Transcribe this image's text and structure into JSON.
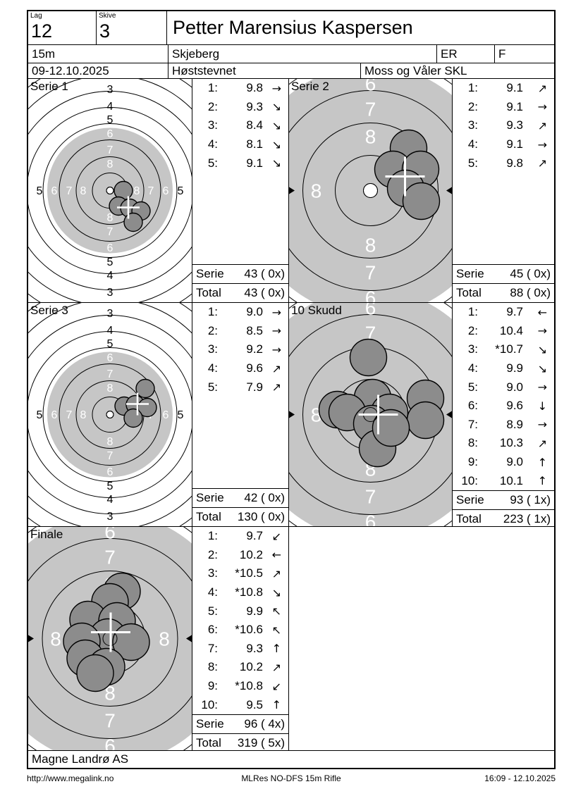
{
  "colors": {
    "target_gray": "#c6c6c6",
    "hole_fill": "#8c8c8c",
    "hole_stroke": "#000000",
    "marker_white": "#ffffff",
    "line_black": "#000000"
  },
  "header": {
    "lag_label": "Lag",
    "lag_value": "12",
    "skive_label": "Skive",
    "skive_value": "3",
    "shooter_name": "Petter Marensius Kaspersen",
    "distance": "15m",
    "club": "Skjeberg",
    "class_code": "ER",
    "category": "F",
    "dates": "09-12.10.2025",
    "event": "Høststevnet",
    "organizer": "Moss og Våler SKL"
  },
  "publisher": "Magne Landrø AS",
  "footer": {
    "url": "http://www.megalink.no",
    "program": "MLRes NO-DFS 15m Rifle",
    "datetime": "16:09 - 12.10.2025"
  },
  "target_config": {
    "s1": {
      "rings": [
        25,
        48,
        72,
        95,
        118,
        141,
        164,
        187,
        210
      ],
      "gray": 89,
      "dot": 5,
      "hole_r": 13,
      "cross_half": 16,
      "cross_w": 2.6,
      "label_size": 16,
      "ticks": false,
      "labels": [
        [
          "3",
          0,
          -144,
          0
        ],
        [
          "4",
          0,
          -120,
          0
        ],
        [
          "5",
          0,
          -101,
          0
        ],
        [
          "6",
          0,
          -81,
          1
        ],
        [
          "7",
          0,
          -58,
          1
        ],
        [
          "8",
          0,
          -38,
          1
        ],
        [
          "8",
          0,
          38,
          1
        ],
        [
          "7",
          0,
          58,
          1
        ],
        [
          "6",
          0,
          81,
          1
        ],
        [
          "5",
          0,
          101,
          0
        ],
        [
          "4",
          0,
          120,
          0
        ],
        [
          "3",
          0,
          144,
          0
        ],
        [
          "5",
          -100,
          0,
          0
        ],
        [
          "6",
          -79,
          0,
          1
        ],
        [
          "7",
          -58,
          0,
          1
        ],
        [
          "8",
          -38,
          0,
          1
        ],
        [
          "8",
          38,
          0,
          1
        ],
        [
          "7",
          58,
          0,
          1
        ],
        [
          "6",
          79,
          0,
          1
        ],
        [
          "5",
          100,
          0,
          0
        ]
      ]
    },
    "s2": {
      "rings": [
        50,
        96,
        142,
        190,
        236
      ],
      "gray": 178,
      "dot": 10,
      "hole_r": 26,
      "cross_half": 28,
      "cross_w": 3,
      "label_size": 28,
      "ticks": true,
      "labels": [
        [
          "6",
          0,
          -152,
          1
        ],
        [
          "7",
          0,
          -116,
          1
        ],
        [
          "8",
          0,
          -77,
          1
        ],
        [
          "8",
          0,
          77,
          1
        ],
        [
          "7",
          0,
          116,
          1
        ],
        [
          "6",
          0,
          152,
          1
        ],
        [
          "8",
          -77,
          0,
          1
        ],
        [
          "8",
          77,
          0,
          1
        ]
      ]
    }
  },
  "panels": [
    {
      "title": "Serie 1",
      "scale": "s1",
      "shots": [
        {
          "n": "1:",
          "v": "9.8",
          "a": "→"
        },
        {
          "n": "2:",
          "v": "9.3",
          "a": "↘"
        },
        {
          "n": "3:",
          "v": "8.4",
          "a": "↘"
        },
        {
          "n": "4:",
          "v": "8.1",
          "a": "↘"
        },
        {
          "n": "5:",
          "v": "9.1",
          "a": "↘"
        }
      ],
      "serie_label": "Serie",
      "serie_value": "43 ( 0x)",
      "total_label": "Total",
      "total_value": "43 ( 0x)",
      "holes": [
        [
          19,
          0
        ],
        [
          12,
          22
        ],
        [
          28,
          25
        ],
        [
          44,
          29
        ],
        [
          33,
          45
        ]
      ],
      "cross": [
        26,
        24
      ]
    },
    {
      "title": "Serie 2",
      "scale": "s2",
      "shots": [
        {
          "n": "1:",
          "v": "9.1",
          "a": "↗"
        },
        {
          "n": "2:",
          "v": "9.1",
          "a": "→"
        },
        {
          "n": "3:",
          "v": "9.3",
          "a": "↗"
        },
        {
          "n": "4:",
          "v": "9.1",
          "a": "→"
        },
        {
          "n": "5:",
          "v": "9.8",
          "a": "↗"
        }
      ],
      "serie_label": "Serie",
      "serie_value": "45 ( 0x)",
      "total_label": "Total",
      "total_value": "88 ( 0x)",
      "holes": [
        [
          54,
          -60
        ],
        [
          32,
          -30
        ],
        [
          71,
          -30
        ],
        [
          50,
          -3
        ],
        [
          72,
          15
        ]
      ],
      "cross": [
        49,
        -20
      ]
    },
    {
      "title": "Serie 3",
      "scale": "s1",
      "shots": [
        {
          "n": "1:",
          "v": "9.0",
          "a": "→"
        },
        {
          "n": "2:",
          "v": "8.5",
          "a": "→"
        },
        {
          "n": "3:",
          "v": "9.2",
          "a": "→"
        },
        {
          "n": "4:",
          "v": "9.6",
          "a": "↗"
        },
        {
          "n": "5:",
          "v": "7.9",
          "a": "↗"
        }
      ],
      "serie_label": "Serie",
      "serie_value": "42 ( 0x)",
      "total_label": "Total",
      "total_value": "130 ( 0x)",
      "holes": [
        [
          50,
          -37
        ],
        [
          20,
          -12
        ],
        [
          36,
          -14
        ],
        [
          53,
          -10
        ],
        [
          33,
          5
        ]
      ],
      "cross": [
        39,
        -15
      ]
    },
    {
      "title": "10 Skudd",
      "scale": "s2",
      "shots": [
        {
          "n": "1:",
          "v": "9.7",
          "a": "←"
        },
        {
          "n": "2:",
          "v": "10.4",
          "a": "→"
        },
        {
          "n": "3:",
          "v": "*10.7",
          "a": "↘"
        },
        {
          "n": "4:",
          "v": "9.9",
          "a": "↘"
        },
        {
          "n": "5:",
          "v": "9.0",
          "a": "→"
        },
        {
          "n": "6:",
          "v": "9.6",
          "a": "↓"
        },
        {
          "n": "7:",
          "v": "8.9",
          "a": "→"
        },
        {
          "n": "8:",
          "v": "10.3",
          "a": "↗"
        },
        {
          "n": "9:",
          "v": "9.0",
          "a": "↑"
        },
        {
          "n": "10:",
          "v": "10.1",
          "a": "↑"
        }
      ],
      "serie_label": "Serie",
      "serie_value": "93 ( 1x)",
      "total_label": "Total",
      "total_value": "223 ( 1x)",
      "holes": [
        [
          -3,
          -81
        ],
        [
          3,
          -24
        ],
        [
          -47,
          -7
        ],
        [
          -33,
          -3
        ],
        [
          78,
          -23
        ],
        [
          78,
          8
        ],
        [
          27,
          -3
        ],
        [
          2,
          13
        ],
        [
          10,
          48
        ],
        [
          29,
          19
        ]
      ],
      "cross": [
        11,
        0
      ]
    },
    {
      "title": "Finale",
      "scale": "s2",
      "shots": [
        {
          "n": "1:",
          "v": "9.7",
          "a": "↙"
        },
        {
          "n": "2:",
          "v": "10.2",
          "a": "←"
        },
        {
          "n": "3:",
          "v": "*10.5",
          "a": "↗"
        },
        {
          "n": "4:",
          "v": "*10.8",
          "a": "↘"
        },
        {
          "n": "5:",
          "v": "9.9",
          "a": "↖"
        },
        {
          "n": "6:",
          "v": "*10.6",
          "a": "↖"
        },
        {
          "n": "7:",
          "v": "9.3",
          "a": "↑"
        },
        {
          "n": "8:",
          "v": "10.2",
          "a": "↗"
        },
        {
          "n": "9:",
          "v": "*10.8",
          "a": "↙"
        },
        {
          "n": "10:",
          "v": "9.5",
          "a": "↑"
        }
      ],
      "serie_label": "Serie",
      "serie_value": "96 ( 4x)",
      "total_label": "Total",
      "total_value": "319 ( 5x)",
      "holes": [
        [
          17,
          -67
        ],
        [
          0,
          -52
        ],
        [
          -31,
          -27
        ],
        [
          10,
          -25
        ],
        [
          -3,
          -2
        ],
        [
          -40,
          4
        ],
        [
          30,
          5
        ],
        [
          -35,
          28
        ],
        [
          -5,
          40
        ],
        [
          -21,
          49
        ]
      ],
      "cross": [
        1,
        -9
      ]
    }
  ]
}
